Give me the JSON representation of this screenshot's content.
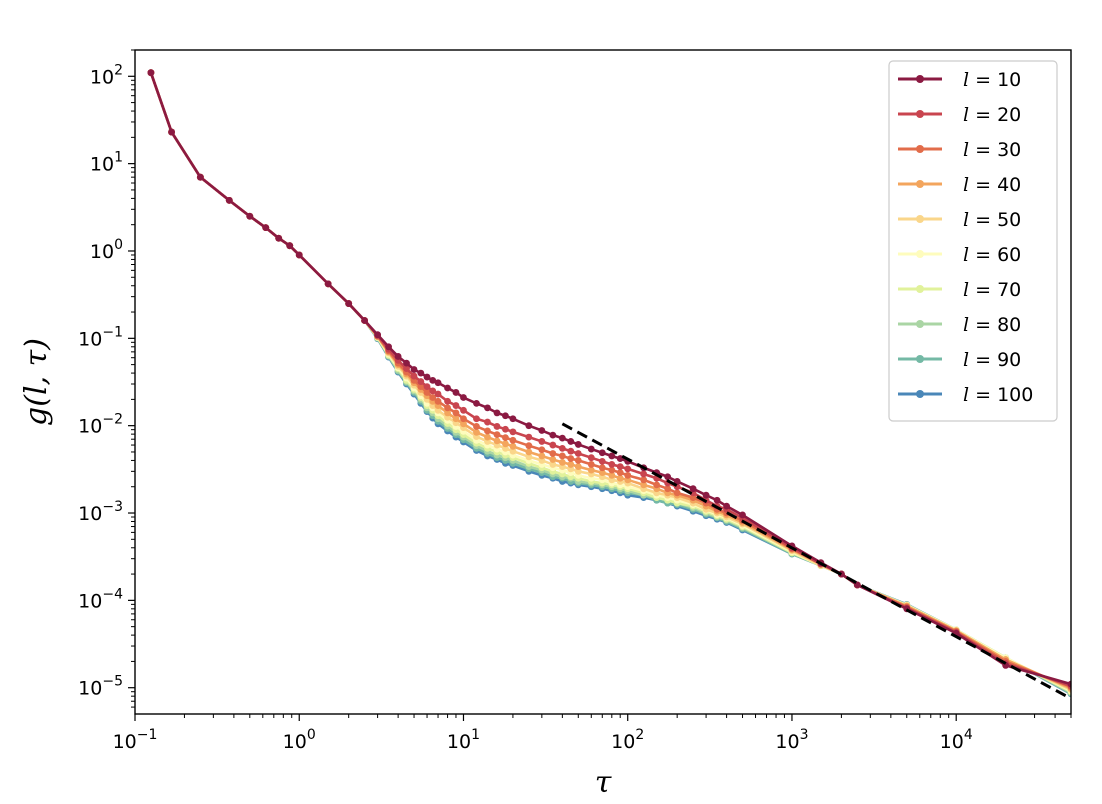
{
  "chart_data": {
    "type": "line",
    "x_scale": "log",
    "y_scale": "log",
    "xlabel": "τ",
    "ylabel": "g(l, τ)",
    "xlim": [
      0.1,
      50000
    ],
    "ylim": [
      5e-06,
      200
    ],
    "x_ticks": [
      {
        "value": 0.1,
        "base": "10",
        "exp": "−1"
      },
      {
        "value": 1,
        "base": "10",
        "exp": "0"
      },
      {
        "value": 10,
        "base": "10",
        "exp": "1"
      },
      {
        "value": 100,
        "base": "10",
        "exp": "2"
      },
      {
        "value": 1000,
        "base": "10",
        "exp": "3"
      },
      {
        "value": 10000,
        "base": "10",
        "exp": "4"
      }
    ],
    "y_ticks": [
      {
        "value": 100,
        "base": "10",
        "exp": "2"
      },
      {
        "value": 10,
        "base": "10",
        "exp": "1"
      },
      {
        "value": 1,
        "base": "10",
        "exp": "0"
      },
      {
        "value": 0.1,
        "base": "10",
        "exp": "−1"
      },
      {
        "value": 0.01,
        "base": "10",
        "exp": "−2"
      },
      {
        "value": 0.001,
        "base": "10",
        "exp": "−3"
      },
      {
        "value": 0.0001,
        "base": "10",
        "exp": "−4"
      },
      {
        "value": 1e-05,
        "base": "10",
        "exp": "−5"
      }
    ],
    "legend": {
      "position": "upper right"
    },
    "x": [
      0.125,
      0.167,
      0.25,
      0.375,
      0.5,
      0.625,
      0.75,
      0.875,
      1,
      1.5,
      2,
      2.5,
      3,
      3.5,
      4,
      4.5,
      5,
      5.5,
      6,
      6.5,
      7,
      8,
      9,
      10,
      12,
      14,
      16,
      18,
      20,
      25,
      30,
      35,
      40,
      45,
      50,
      60,
      70,
      80,
      90,
      100,
      125,
      150,
      175,
      200,
      250,
      300,
      350,
      400,
      500,
      1000,
      1500,
      2000,
      2500,
      5000,
      10000,
      20000,
      50000
    ],
    "series": [
      {
        "name": "l = 10",
        "label_base": "l",
        "label_value": "10",
        "color": "#8b1a42",
        "y": [
          110,
          23,
          7,
          3.8,
          2.5,
          1.85,
          1.4,
          1.15,
          0.9,
          0.42,
          0.25,
          0.16,
          0.11,
          0.08,
          0.062,
          0.052,
          0.044,
          0.04,
          0.036,
          0.033,
          0.031,
          0.027,
          0.024,
          0.021,
          0.018,
          0.016,
          0.014,
          0.013,
          0.012,
          0.01,
          0.0088,
          0.0078,
          0.0072,
          0.0066,
          0.0061,
          0.0054,
          0.0049,
          0.0045,
          0.0042,
          0.0039,
          0.0033,
          0.0029,
          0.0026,
          0.0023,
          0.0019,
          0.0016,
          0.0014,
          0.0012,
          0.00095,
          0.00042,
          0.00027,
          0.0002,
          0.00015,
          8e-05,
          4.2e-05,
          1.8e-05,
          1.1e-05
        ]
      },
      {
        "name": "l = 20",
        "label_base": "l",
        "label_value": "20",
        "color": "#c9454f",
        "y": [
          110,
          23,
          7,
          3.8,
          2.5,
          1.85,
          1.4,
          1.15,
          0.9,
          0.42,
          0.25,
          0.16,
          0.108,
          0.075,
          0.056,
          0.045,
          0.037,
          0.032,
          0.028,
          0.025,
          0.023,
          0.019,
          0.017,
          0.015,
          0.012,
          0.011,
          0.0098,
          0.0091,
          0.0085,
          0.0074,
          0.0066,
          0.006,
          0.0055,
          0.0051,
          0.0048,
          0.0043,
          0.0039,
          0.0036,
          0.0034,
          0.0032,
          0.0028,
          0.0025,
          0.0022,
          0.002,
          0.0017,
          0.0014,
          0.0012,
          0.0011,
          0.00088,
          0.0004,
          0.00026,
          0.0002,
          0.00015,
          8.2e-05,
          4.3e-05,
          1.9e-05,
          1.05e-05
        ]
      },
      {
        "name": "l = 30",
        "label_base": "l",
        "label_value": "30",
        "color": "#e26c4a",
        "y": [
          110,
          23,
          7,
          3.8,
          2.5,
          1.85,
          1.4,
          1.15,
          0.9,
          0.42,
          0.25,
          0.16,
          0.106,
          0.072,
          0.052,
          0.041,
          0.033,
          0.028,
          0.024,
          0.021,
          0.019,
          0.016,
          0.014,
          0.012,
          0.0098,
          0.0087,
          0.0079,
          0.0073,
          0.0068,
          0.0059,
          0.0053,
          0.0048,
          0.0045,
          0.0042,
          0.004,
          0.0036,
          0.0033,
          0.0031,
          0.0029,
          0.0027,
          0.0024,
          0.0021,
          0.0019,
          0.0017,
          0.0015,
          0.0013,
          0.0011,
          0.001,
          0.00082,
          0.00039,
          0.00026,
          0.0002,
          0.00015,
          8.4e-05,
          4.4e-05,
          2e-05,
          1.02e-05
        ]
      },
      {
        "name": "l = 40",
        "label_base": "l",
        "label_value": "40",
        "color": "#f3a55d",
        "y": [
          110,
          23,
          7,
          3.8,
          2.5,
          1.85,
          1.4,
          1.15,
          0.9,
          0.42,
          0.25,
          0.16,
          0.105,
          0.07,
          0.05,
          0.039,
          0.031,
          0.026,
          0.022,
          0.019,
          0.017,
          0.014,
          0.012,
          0.0105,
          0.0084,
          0.0074,
          0.0067,
          0.0062,
          0.0058,
          0.005,
          0.0045,
          0.0041,
          0.0038,
          0.0036,
          0.0034,
          0.0031,
          0.0029,
          0.0027,
          0.0025,
          0.0024,
          0.0021,
          0.0019,
          0.0017,
          0.0016,
          0.0014,
          0.0012,
          0.00105,
          0.00095,
          0.00078,
          0.00038,
          0.00026,
          0.0002,
          0.00015,
          8.6e-05,
          4.5e-05,
          2.1e-05,
          9.8e-06
        ]
      },
      {
        "name": "l = 50",
        "label_base": "l",
        "label_value": "50",
        "color": "#fad68a",
        "y": [
          110,
          23,
          7,
          3.8,
          2.5,
          1.85,
          1.4,
          1.15,
          0.9,
          0.42,
          0.25,
          0.16,
          0.104,
          0.068,
          0.048,
          0.037,
          0.029,
          0.024,
          0.02,
          0.017,
          0.015,
          0.0125,
          0.0108,
          0.0095,
          0.0075,
          0.0066,
          0.006,
          0.0055,
          0.0051,
          0.0044,
          0.004,
          0.0036,
          0.0034,
          0.0032,
          0.003,
          0.0028,
          0.0026,
          0.0024,
          0.0023,
          0.0022,
          0.0019,
          0.0017,
          0.0016,
          0.0015,
          0.0013,
          0.0011,
          0.001,
          0.0009,
          0.00075,
          0.00037,
          0.00025,
          0.0002,
          0.00015,
          8.7e-05,
          4.5e-05,
          2.1e-05,
          9.5e-06
        ]
      },
      {
        "name": "l = 60",
        "label_base": "l",
        "label_value": "60",
        "color": "#fefcbd",
        "y": [
          110,
          23,
          7,
          3.8,
          2.5,
          1.85,
          1.4,
          1.15,
          0.9,
          0.42,
          0.25,
          0.16,
          0.103,
          0.066,
          0.046,
          0.035,
          0.027,
          0.022,
          0.018,
          0.016,
          0.014,
          0.0115,
          0.0098,
          0.0086,
          0.0068,
          0.006,
          0.0054,
          0.005,
          0.0046,
          0.004,
          0.0036,
          0.0033,
          0.0031,
          0.0029,
          0.0027,
          0.0025,
          0.0024,
          0.0022,
          0.0021,
          0.002,
          0.0018,
          0.0016,
          0.0015,
          0.0014,
          0.00125,
          0.00108,
          0.00096,
          0.00088,
          0.00072,
          0.00036,
          0.00025,
          0.0002,
          0.00015,
          8.8e-05,
          4.6e-05,
          2.2e-05,
          9.2e-06
        ]
      },
      {
        "name": "l = 70",
        "label_base": "l",
        "label_value": "70",
        "color": "#e1f29b",
        "y": [
          110,
          23,
          7,
          3.8,
          2.5,
          1.85,
          1.4,
          1.15,
          0.9,
          0.42,
          0.25,
          0.16,
          0.102,
          0.064,
          0.045,
          0.033,
          0.026,
          0.021,
          0.017,
          0.015,
          0.013,
          0.0106,
          0.009,
          0.0079,
          0.0063,
          0.0055,
          0.005,
          0.0046,
          0.0043,
          0.0037,
          0.0033,
          0.003,
          0.0028,
          0.0026,
          0.0025,
          0.0023,
          0.0022,
          0.0021,
          0.002,
          0.0019,
          0.0017,
          0.0015,
          0.0014,
          0.0013,
          0.0012,
          0.00104,
          0.00093,
          0.00085,
          0.0007,
          0.00035,
          0.00025,
          0.0002,
          0.00015,
          8.8e-05,
          4.6e-05,
          2.2e-05,
          9e-06
        ]
      },
      {
        "name": "l = 80",
        "label_base": "l",
        "label_value": "80",
        "color": "#aad5a4",
        "y": [
          110,
          23,
          7,
          3.8,
          2.5,
          1.85,
          1.4,
          1.15,
          0.9,
          0.42,
          0.25,
          0.16,
          0.101,
          0.063,
          0.043,
          0.032,
          0.025,
          0.02,
          0.016,
          0.014,
          0.012,
          0.0099,
          0.0084,
          0.0074,
          0.0059,
          0.0051,
          0.0046,
          0.0043,
          0.004,
          0.0034,
          0.0031,
          0.0028,
          0.0026,
          0.0025,
          0.0023,
          0.0022,
          0.0021,
          0.002,
          0.0019,
          0.0018,
          0.0016,
          0.0015,
          0.0014,
          0.0013,
          0.00115,
          0.001,
          0.0009,
          0.00083,
          0.00068,
          0.00035,
          0.00025,
          0.0002,
          0.00015,
          8.9e-05,
          4.6e-05,
          2.2e-05,
          8.8e-06
        ]
      },
      {
        "name": "l = 90",
        "label_base": "l",
        "label_value": "90",
        "color": "#74b9a5",
        "y": [
          110,
          23,
          7,
          3.8,
          2.5,
          1.85,
          1.4,
          1.15,
          0.9,
          0.42,
          0.25,
          0.16,
          0.1,
          0.062,
          0.042,
          0.031,
          0.024,
          0.019,
          0.015,
          0.013,
          0.0112,
          0.0093,
          0.0079,
          0.0069,
          0.0055,
          0.0048,
          0.0043,
          0.004,
          0.0037,
          0.0032,
          0.0029,
          0.0026,
          0.0025,
          0.0023,
          0.0022,
          0.0021,
          0.002,
          0.0019,
          0.0018,
          0.0017,
          0.0016,
          0.0014,
          0.0013,
          0.00125,
          0.0011,
          0.00097,
          0.00088,
          0.0008,
          0.00066,
          0.00034,
          0.00025,
          0.0002,
          0.00015,
          8.9e-05,
          4.6e-05,
          2.2e-05,
          8.6e-06
        ]
      },
      {
        "name": "l = 100",
        "label_base": "l",
        "label_value": "100",
        "color": "#4a87b8",
        "y": [
          110,
          23,
          7,
          3.8,
          2.5,
          1.85,
          1.4,
          1.15,
          0.9,
          0.42,
          0.25,
          0.16,
          0.099,
          0.061,
          0.041,
          0.03,
          0.023,
          0.018,
          0.0145,
          0.0122,
          0.0105,
          0.0087,
          0.0074,
          0.0065,
          0.0052,
          0.0045,
          0.0041,
          0.0037,
          0.0035,
          0.003,
          0.0027,
          0.0025,
          0.0023,
          0.0022,
          0.0021,
          0.002,
          0.0019,
          0.0018,
          0.0017,
          0.0016,
          0.0015,
          0.0014,
          0.0013,
          0.0012,
          0.00105,
          0.00093,
          0.00085,
          0.00078,
          0.00064,
          0.00034,
          0.00025,
          0.0002,
          0.00015,
          9e-05,
          4.6e-05,
          2.2e-05,
          8.5e-06
        ]
      }
    ],
    "reference_line": {
      "style": "dashed",
      "color": "#000000",
      "x": [
        40,
        50000
      ],
      "y": [
        0.0105,
        7.5e-06
      ]
    }
  }
}
